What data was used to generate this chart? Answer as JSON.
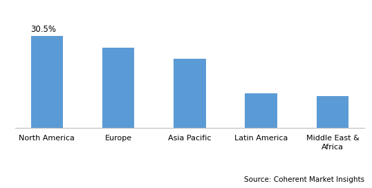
{
  "categories": [
    "North America",
    "Europe",
    "Asia Pacific",
    "Latin America",
    "Middle East &\nAfrica"
  ],
  "values": [
    30.5,
    26.5,
    23.0,
    11.5,
    10.5
  ],
  "bar_color": "#5b9bd5",
  "annotation": "30.5%",
  "annotation_bar_index": 0,
  "source_text": "Source: Coherent Market Insights",
  "ylim": [
    0,
    38
  ],
  "background_color": "#ffffff",
  "bar_width": 0.45,
  "annotation_fontsize": 8.5,
  "source_fontsize": 7.5,
  "tick_fontsize": 8.0
}
